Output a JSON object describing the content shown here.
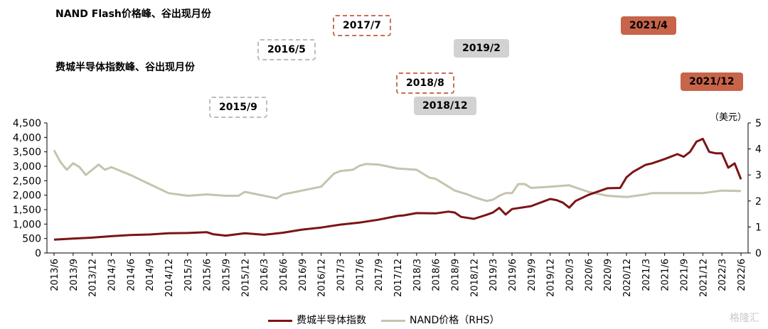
{
  "headings": {
    "nand_peak_trough": "NAND Flash价格峰、谷出现月份",
    "sox_peak_trough": "费城半导体指数峰、谷出现月份"
  },
  "badges": [
    {
      "key": "b2015_9",
      "text": "2015/9",
      "style": "white-dashed"
    },
    {
      "key": "b2016_5",
      "text": "2016/5",
      "style": "white-dashed"
    },
    {
      "key": "b2017_7",
      "text": "2017/7",
      "style": "red-dashed"
    },
    {
      "key": "b2018_8",
      "text": "2018/8",
      "style": "red-dashed"
    },
    {
      "key": "b2018_12",
      "text": "2018/12",
      "style": "gray"
    },
    {
      "key": "b2019_2",
      "text": "2019/2",
      "style": "gray"
    },
    {
      "key": "b2021_4",
      "text": "2021/4",
      "style": "red"
    },
    {
      "key": "b2021_12",
      "text": "2021/12",
      "style": "red"
    }
  ],
  "colors": {
    "sox": "#7b1416",
    "nand": "#c4c4ae",
    "badge_red": "#c7644a",
    "badge_gray": "#d2d2d2"
  },
  "watermark": "格隆汇",
  "chart_data": {
    "type": "line",
    "title": "",
    "unit_right": "（美元）",
    "ylim_left": [
      0,
      4500
    ],
    "yticks_left": [
      "0",
      "500",
      "1,000",
      "1,500",
      "2,000",
      "2,500",
      "3,000",
      "3,500",
      "4,000",
      "4,500"
    ],
    "ylim_right": [
      0,
      5
    ],
    "yticks_right": [
      "0",
      "1",
      "2",
      "3",
      "4",
      "5"
    ],
    "xlim": [
      "2013/6",
      "2022/6"
    ],
    "x_tick_labels": [
      "2013/6",
      "2013/9",
      "2013/12",
      "2014/3",
      "2014/6",
      "2014/9",
      "2014/12",
      "2015/3",
      "2015/6",
      "2015/9",
      "2015/12",
      "2016/3",
      "2016/6",
      "2016/9",
      "2016/12",
      "2017/3",
      "2017/6",
      "2017/9",
      "2017/12",
      "2018/3",
      "2018/6",
      "2018/9",
      "2018/12",
      "2019/3",
      "2019/6",
      "2019/9",
      "2019/12",
      "2020/3",
      "2020/6",
      "2020/9",
      "2020/12",
      "2021/3",
      "2021/6",
      "2021/9",
      "2021/12",
      "2022/3",
      "2022/6"
    ],
    "legend_position": "bottom-center",
    "series": [
      {
        "name": "费城半导体指数",
        "axis": "left",
        "points": [
          [
            "2013/6",
            460
          ],
          [
            "2013/9",
            500
          ],
          [
            "2013/12",
            530
          ],
          [
            "2014/3",
            580
          ],
          [
            "2014/6",
            620
          ],
          [
            "2014/9",
            640
          ],
          [
            "2014/12",
            680
          ],
          [
            "2015/3",
            690
          ],
          [
            "2015/6",
            720
          ],
          [
            "2015/7",
            650
          ],
          [
            "2015/9",
            600
          ],
          [
            "2015/12",
            680
          ],
          [
            "2016/3",
            630
          ],
          [
            "2016/6",
            700
          ],
          [
            "2016/9",
            810
          ],
          [
            "2016/12",
            880
          ],
          [
            "2017/3",
            980
          ],
          [
            "2017/6",
            1050
          ],
          [
            "2017/9",
            1150
          ],
          [
            "2017/12",
            1280
          ],
          [
            "2018/1",
            1300
          ],
          [
            "2018/3",
            1380
          ],
          [
            "2018/6",
            1370
          ],
          [
            "2018/8",
            1430
          ],
          [
            "2018/9",
            1400
          ],
          [
            "2018/10",
            1250
          ],
          [
            "2018/12",
            1180
          ],
          [
            "2019/2",
            1320
          ],
          [
            "2019/3",
            1400
          ],
          [
            "2019/4",
            1560
          ],
          [
            "2019/5",
            1330
          ],
          [
            "2019/6",
            1520
          ],
          [
            "2019/9",
            1620
          ],
          [
            "2019/12",
            1870
          ],
          [
            "2020/1",
            1830
          ],
          [
            "2020/2",
            1740
          ],
          [
            "2020/3",
            1570
          ],
          [
            "2020/4",
            1800
          ],
          [
            "2020/6",
            2010
          ],
          [
            "2020/9",
            2240
          ],
          [
            "2020/11",
            2250
          ],
          [
            "2020/12",
            2620
          ],
          [
            "2021/1",
            2800
          ],
          [
            "2021/3",
            3050
          ],
          [
            "2021/4",
            3100
          ],
          [
            "2021/6",
            3250
          ],
          [
            "2021/8",
            3420
          ],
          [
            "2021/9",
            3330
          ],
          [
            "2021/10",
            3500
          ],
          [
            "2021/11",
            3850
          ],
          [
            "2021/12",
            3950
          ],
          [
            "2022/1",
            3500
          ],
          [
            "2022/2",
            3450
          ],
          [
            "2022/3",
            3450
          ],
          [
            "2022/4",
            2950
          ],
          [
            "2022/5",
            3100
          ],
          [
            "2022/6",
            2550
          ]
        ]
      },
      {
        "name": "NAND价格（RHS）",
        "axis": "right",
        "points": [
          [
            "2013/6",
            3.95
          ],
          [
            "2013/7",
            3.5
          ],
          [
            "2013/8",
            3.2
          ],
          [
            "2013/9",
            3.45
          ],
          [
            "2013/10",
            3.3
          ],
          [
            "2013/11",
            3.0
          ],
          [
            "2013/12",
            3.2
          ],
          [
            "2014/1",
            3.4
          ],
          [
            "2014/2",
            3.2
          ],
          [
            "2014/3",
            3.3
          ],
          [
            "2014/4",
            3.2
          ],
          [
            "2014/6",
            3.0
          ],
          [
            "2014/9",
            2.65
          ],
          [
            "2014/12",
            2.3
          ],
          [
            "2015/3",
            2.2
          ],
          [
            "2015/6",
            2.25
          ],
          [
            "2015/9",
            2.2
          ],
          [
            "2015/11",
            2.2
          ],
          [
            "2015/12",
            2.35
          ],
          [
            "2016/2",
            2.25
          ],
          [
            "2016/5",
            2.1
          ],
          [
            "2016/6",
            2.25
          ],
          [
            "2016/9",
            2.4
          ],
          [
            "2016/12",
            2.55
          ],
          [
            "2017/1",
            2.8
          ],
          [
            "2017/2",
            3.05
          ],
          [
            "2017/3",
            3.15
          ],
          [
            "2017/5",
            3.2
          ],
          [
            "2017/6",
            3.35
          ],
          [
            "2017/7",
            3.42
          ],
          [
            "2017/9",
            3.4
          ],
          [
            "2017/10",
            3.35
          ],
          [
            "2017/12",
            3.25
          ],
          [
            "2018/3",
            3.2
          ],
          [
            "2018/5",
            2.9
          ],
          [
            "2018/6",
            2.85
          ],
          [
            "2018/8",
            2.55
          ],
          [
            "2018/9",
            2.4
          ],
          [
            "2018/11",
            2.25
          ],
          [
            "2018/12",
            2.15
          ],
          [
            "2019/2",
            2.0
          ],
          [
            "2019/3",
            2.05
          ],
          [
            "2019/4",
            2.2
          ],
          [
            "2019/5",
            2.3
          ],
          [
            "2019/6",
            2.3
          ],
          [
            "2019/7",
            2.65
          ],
          [
            "2019/8",
            2.65
          ],
          [
            "2019/9",
            2.5
          ],
          [
            "2019/12",
            2.55
          ],
          [
            "2020/3",
            2.6
          ],
          [
            "2020/6",
            2.35
          ],
          [
            "2020/9",
            2.2
          ],
          [
            "2020/12",
            2.15
          ],
          [
            "2021/3",
            2.25
          ],
          [
            "2021/4",
            2.3
          ],
          [
            "2021/6",
            2.3
          ],
          [
            "2021/9",
            2.3
          ],
          [
            "2021/12",
            2.3
          ],
          [
            "2022/3",
            2.4
          ],
          [
            "2022/6",
            2.38
          ]
        ]
      }
    ]
  }
}
